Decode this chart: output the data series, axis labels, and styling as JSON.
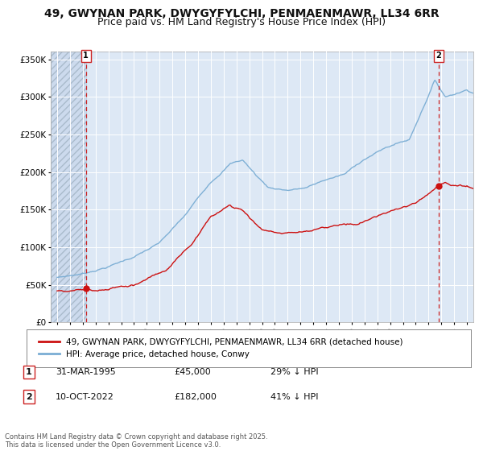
{
  "title": "49, GWYNAN PARK, DWYGYFYLCHI, PENMAENMAWR, LL34 6RR",
  "subtitle": "Price paid vs. HM Land Registry's House Price Index (HPI)",
  "title_fontsize": 10,
  "subtitle_fontsize": 9,
  "bg_color": "#ffffff",
  "plot_bg_color": "#dde8f5",
  "grid_color": "#ffffff",
  "x_start_year": 1993,
  "x_end_year": 2025,
  "ylim": [
    0,
    360000
  ],
  "yticks": [
    0,
    50000,
    100000,
    150000,
    200000,
    250000,
    300000,
    350000
  ],
  "sale1_date": 1995.25,
  "sale1_price": 45000,
  "sale1_label": "1",
  "sale2_date": 2022.78,
  "sale2_price": 182000,
  "sale2_label": "2",
  "hpi_color": "#7aadd4",
  "price_color": "#cc1111",
  "marker_color": "#cc1111",
  "vline_color": "#cc2222",
  "legend_label_price": "49, GWYNAN PARK, DWYGYFYLCHI, PENMAENMAWR, LL34 6RR (detached house)",
  "legend_label_hpi": "HPI: Average price, detached house, Conwy",
  "annotation1_date": "31-MAR-1995",
  "annotation1_price": "£45,000",
  "annotation1_hpi": "29% ↓ HPI",
  "annotation2_date": "10-OCT-2022",
  "annotation2_price": "£182,000",
  "annotation2_hpi": "41% ↓ HPI",
  "footer": "Contains HM Land Registry data © Crown copyright and database right 2025.\nThis data is licensed under the Open Government Licence v3.0."
}
